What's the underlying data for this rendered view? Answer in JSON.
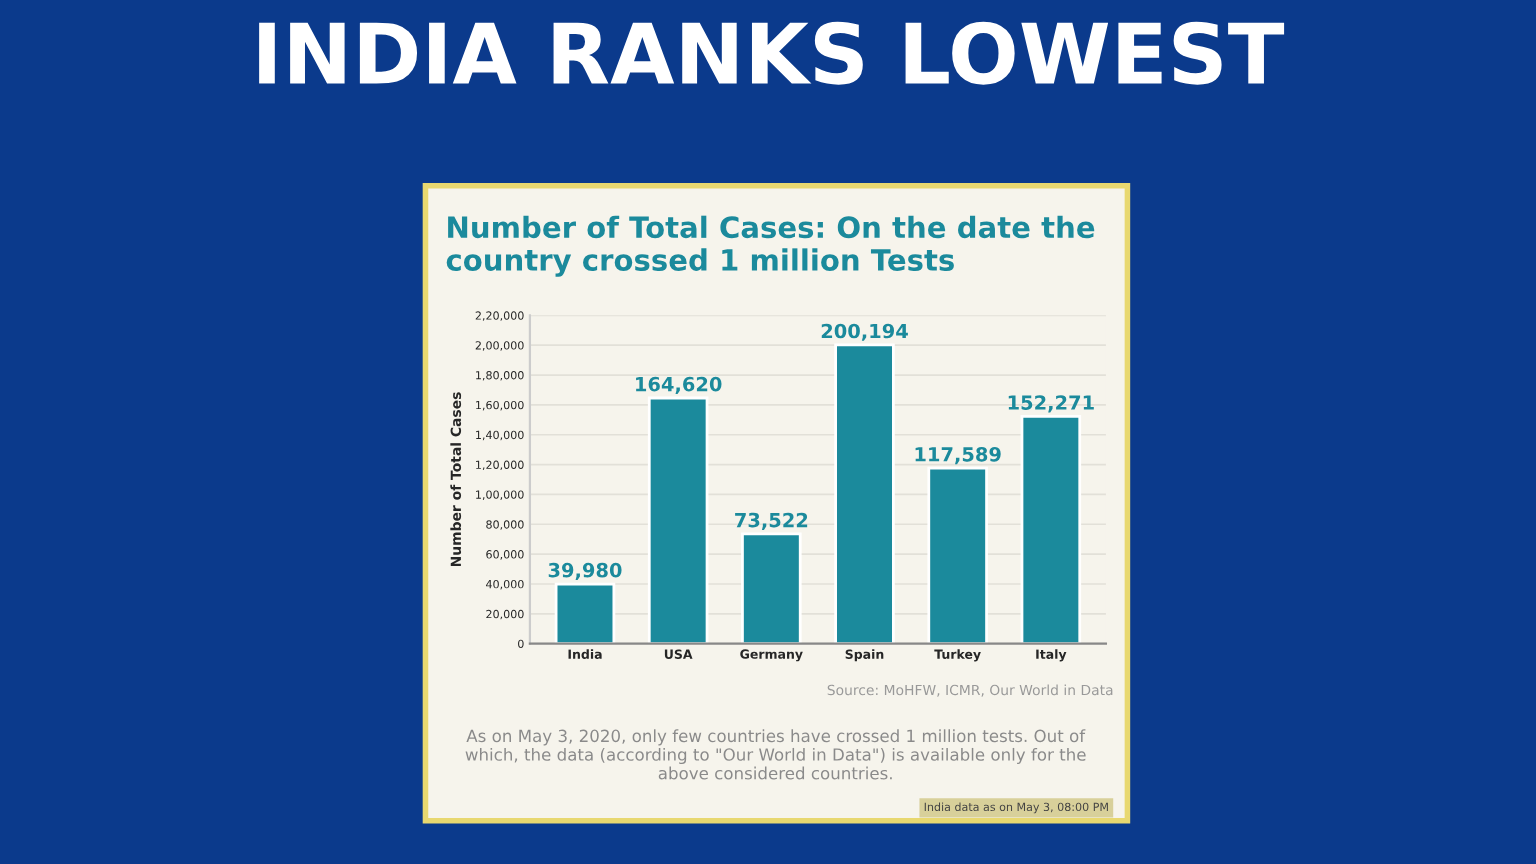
{
  "chart_data": {
    "type": "bar",
    "title": "INDIA RANKS LOWEST",
    "subtitle": "Number of Total Cases: On the date the country crossed 1 million Tests",
    "ylabel": "Number of Total Cases",
    "categories": [
      "India",
      "USA",
      "Germany",
      "Spain",
      "Turkey",
      "Italy"
    ],
    "values": [
      39980,
      164620,
      73522,
      200194,
      117589,
      152271
    ],
    "value_labels": [
      "39,980",
      "164,620",
      "73,522",
      "200,194",
      "117,589",
      "152,271"
    ],
    "color": "#1b8a9c",
    "ylim": [
      0,
      220000
    ],
    "yticks": [
      0,
      {
        "value": 20000,
        "label": "20,000"
      },
      {
        "value": 40000,
        "label": "40,000"
      },
      {
        "value": 60000,
        "label": "60,000"
      },
      {
        "value": 80000,
        "label": "80,000"
      },
      {
        "value": 100000,
        "label": "1,00,000"
      },
      {
        "value": 120000,
        "label": "1,20,000"
      },
      {
        "value": 140000,
        "label": "1,40,000"
      },
      {
        "value": 160000,
        "label": "1,60,000"
      },
      {
        "value": 180000,
        "label": "1,80,000"
      },
      {
        "value": 200000,
        "label": "2,00,000"
      },
      {
        "value": 220000,
        "label": "2,20,000"
      }
    ],
    "grid": "y",
    "annotations": [
      "Source: MoHFW, ICMR, Our World in Data",
      "As on May 3, 2020, only few countries have crossed 1 million tests. Out of which, the data (according to \"Our World in Data\") is available only for the above considered countries.",
      "India data as on May 3, 08:00 PM"
    ]
  }
}
